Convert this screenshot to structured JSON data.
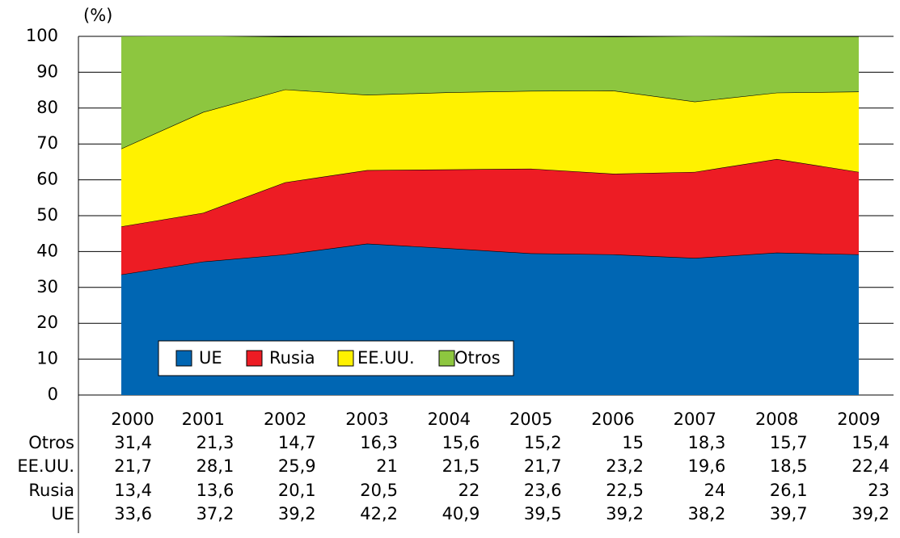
{
  "chart_data": {
    "type": "stacked_area",
    "y_label": "(%)",
    "categories": [
      "2000",
      "2001",
      "2002",
      "2003",
      "2004",
      "2005",
      "2006",
      "2007",
      "2008",
      "2009"
    ],
    "series": [
      {
        "name": "UE",
        "color": "#0066b3",
        "values": [
          33.6,
          37.2,
          39.2,
          42.2,
          40.9,
          39.5,
          39.2,
          38.2,
          39.7,
          39.2
        ],
        "value_labels": [
          "33,6",
          "37,2",
          "39,2",
          "42,2",
          "40,9",
          "39,5",
          "39,2",
          "38,2",
          "39,7",
          "39,2"
        ]
      },
      {
        "name": "Rusia",
        "color": "#ed1c24",
        "values": [
          13.4,
          13.6,
          20.1,
          20.5,
          22,
          23.6,
          22.5,
          24,
          26.1,
          23
        ],
        "value_labels": [
          "13,4",
          "13,6",
          "20,1",
          "20,5",
          "22",
          "23,6",
          "22,5",
          "24",
          "26,1",
          "23"
        ]
      },
      {
        "name": "EE.UU.",
        "color": "#fff200",
        "values": [
          21.7,
          28.1,
          25.9,
          21,
          21.5,
          21.7,
          23.2,
          19.6,
          18.5,
          22.4
        ],
        "value_labels": [
          "21,7",
          "28,1",
          "25,9",
          "21",
          "21,5",
          "21,7",
          "23,2",
          "19,6",
          "18,5",
          "22,4"
        ]
      },
      {
        "name": "Otros",
        "color": "#8dc63f",
        "values": [
          31.4,
          21.3,
          14.7,
          16.3,
          15.6,
          15.2,
          15,
          18.3,
          15.7,
          15.4
        ],
        "value_labels": [
          "31,4",
          "21,3",
          "14,7",
          "16,3",
          "15,6",
          "15,2",
          "15",
          "18,3",
          "15,7",
          "15,4"
        ]
      }
    ],
    "ylim": [
      0,
      100
    ],
    "yticks": [
      0,
      10,
      20,
      30,
      40,
      50,
      60,
      70,
      80,
      90,
      100
    ],
    "grid": true
  }
}
